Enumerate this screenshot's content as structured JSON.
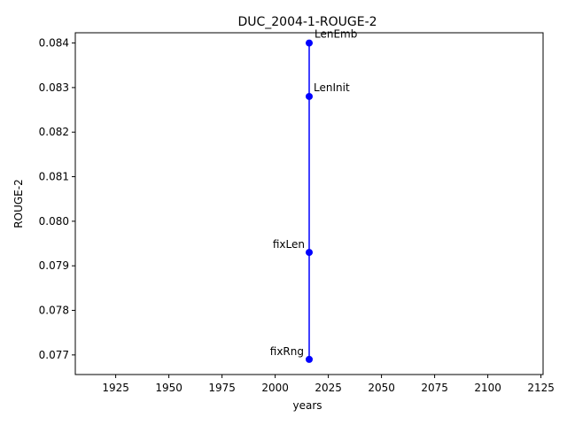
{
  "chart_data": {
    "type": "line",
    "title": "DUC_2004-1-ROUGE-2",
    "xlabel": "years",
    "ylabel": "ROUGE-2",
    "xlim": [
      1906,
      2126
    ],
    "ylim": [
      0.07656,
      0.08423
    ],
    "xticks": [
      1925,
      1950,
      1975,
      2000,
      2025,
      2050,
      2075,
      2100,
      2125
    ],
    "yticks": [
      0.077,
      0.078,
      0.079,
      0.08,
      0.081,
      0.082,
      0.083,
      0.084
    ],
    "grid": false,
    "line_color": "#0000ff",
    "marker_color": "#0000ff",
    "points": [
      {
        "label": "LenEmb",
        "x": 2016,
        "y": 0.084
      },
      {
        "label": "LenInit",
        "x": 2016,
        "y": 0.0828
      },
      {
        "label": "fixLen",
        "x": 2016,
        "y": 0.0793
      },
      {
        "label": "fixRng",
        "x": 2016,
        "y": 0.0769
      }
    ]
  }
}
